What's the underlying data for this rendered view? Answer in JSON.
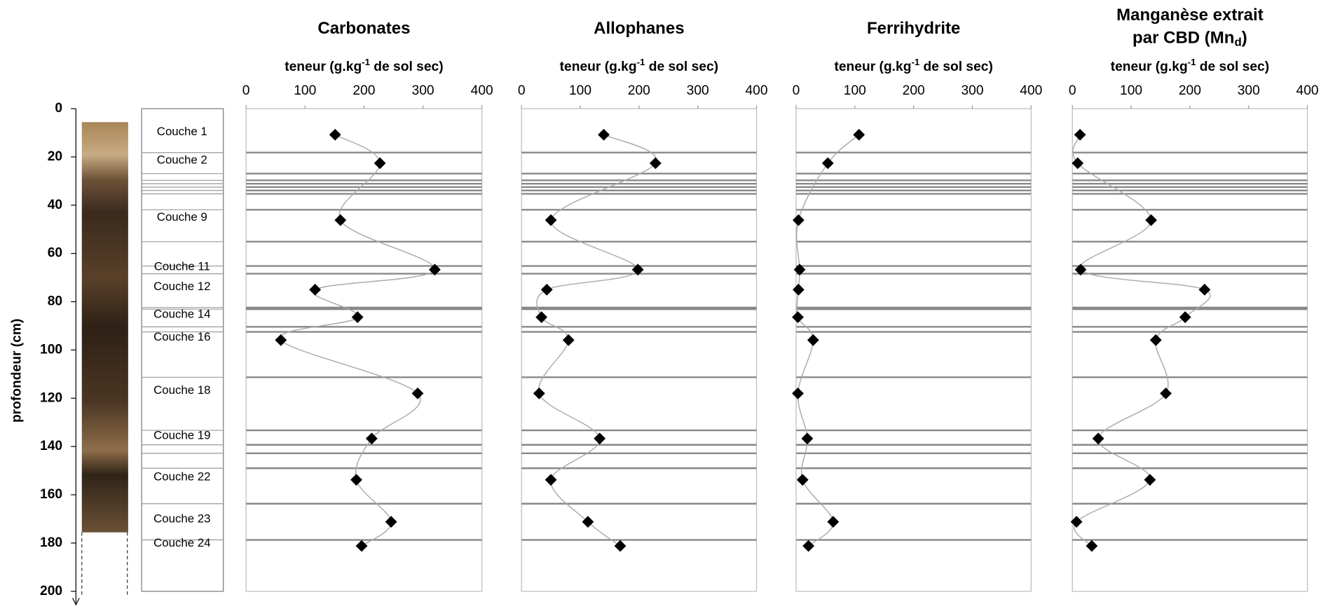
{
  "depth_axis": {
    "label": "profondeur (cm)",
    "ylim": [
      0,
      200
    ],
    "yticks": [
      0,
      20,
      40,
      60,
      80,
      100,
      120,
      140,
      160,
      180,
      200
    ],
    "sample_depths": [
      10.8,
      22.6,
      46.2,
      66.7,
      75,
      86.4,
      95.9,
      118,
      136.7,
      153.8,
      171.2,
      181.2
    ],
    "layers": [
      "Couche 1",
      "Couche 2",
      "Couche 9",
      "Couche 11",
      "Couche 12",
      "Couche 14",
      "Couche 16",
      "Couche 18",
      "Couche 19",
      "Couche 22",
      "Couche 23",
      "Couche 24"
    ],
    "layer_boundaries": [
      18.2,
      26.9,
      29.7,
      31.1,
      32.5,
      33.9,
      35.3,
      41.9,
      55.1,
      65.2,
      68.4,
      82.4,
      83.1,
      90.4,
      92.5,
      111.3,
      133.3,
      139.3,
      142.8,
      149.0,
      163.7,
      178.7
    ]
  },
  "chart_data": [
    {
      "type": "scatter",
      "title": [
        "Carbonates"
      ],
      "xlabel": "teneur (g.kg",
      "xlabel_superscript": "-1",
      "xlabel_suffix": " de sol sec)",
      "xlim": [
        0,
        400
      ],
      "xticks": [
        0,
        100,
        200,
        300,
        400
      ],
      "color": "#000000",
      "line_color": "#aaaaaa",
      "values": [
        151,
        227,
        160,
        320,
        117,
        189,
        59,
        291,
        213,
        187,
        246,
        196
      ]
    },
    {
      "type": "scatter",
      "title": [
        "Allophanes"
      ],
      "xlabel": "teneur (g.kg",
      "xlabel_superscript": "-1",
      "xlabel_suffix": " de sol sec)",
      "xlim": [
        0,
        400
      ],
      "xticks": [
        0,
        100,
        200,
        300,
        400
      ],
      "color": "#000000",
      "line_color": "#aaaaaa",
      "values": [
        140,
        228,
        50,
        198,
        43,
        34,
        80,
        30,
        133,
        50,
        113,
        168
      ]
    },
    {
      "type": "scatter",
      "title": [
        "Ferrihydrite"
      ],
      "xlabel": "teneur (g.kg",
      "xlabel_superscript": "-1",
      "xlabel_suffix": " de sol sec)",
      "xlim": [
        0,
        400
      ],
      "xticks": [
        0,
        100,
        200,
        300,
        400
      ],
      "color": "#000000",
      "line_color": "#aaaaaa",
      "values": [
        107,
        54,
        4,
        6,
        4,
        3,
        29,
        3,
        19,
        11,
        63,
        21
      ]
    },
    {
      "type": "scatter",
      "title": [
        "Manganèse extrait",
        "par CBD (Mn"
      ],
      "title_subscript": "d",
      "title_suffix": ")",
      "xlabel": "teneur (g.kg",
      "xlabel_superscript": "-1",
      "xlabel_suffix": " de sol sec)",
      "xlim": [
        0,
        400
      ],
      "xticks": [
        0,
        100,
        200,
        300,
        400
      ],
      "color": "#000000",
      "line_color": "#aaaaaa",
      "values": [
        13,
        9,
        134,
        14,
        225,
        192,
        142,
        159,
        44,
        132,
        7,
        33
      ]
    }
  ]
}
